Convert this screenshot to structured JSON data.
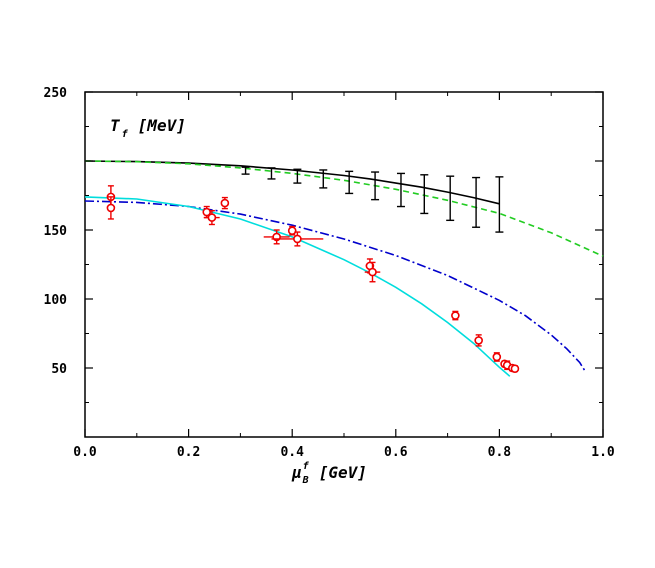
{
  "chart_data": {
    "type": "line",
    "title": "",
    "panel_label": {
      "symbol": "T",
      "subscript": "f",
      "unit": "[MeV]"
    },
    "xlabel": {
      "symbol": "μ",
      "superscript": "f",
      "subscript": "B",
      "unit": "[GeV]"
    },
    "xlim": [
      0.0,
      1.0
    ],
    "ylim": [
      0,
      250
    ],
    "x_ticks": [
      "0.0",
      "0.2",
      "0.4",
      "0.6",
      "0.8",
      "1.0"
    ],
    "x_tick_values": [
      0.0,
      0.2,
      0.4,
      0.6,
      0.8,
      1.0
    ],
    "y_ticks": [
      "50",
      "100",
      "150",
      "250"
    ],
    "y_tick_values": [
      50,
      100,
      150,
      250
    ],
    "grid": false,
    "legend": "none",
    "colors": {
      "lattice": "#000000",
      "green_dashed": "#22cc22",
      "blue_dashdot": "#0000cc",
      "cyan": "#00dddd",
      "data": "#ee0000"
    },
    "curves": [
      {
        "style": "solid",
        "color": "#000000",
        "x": [
          0.0,
          0.1,
          0.2,
          0.3,
          0.4,
          0.5,
          0.55,
          0.6,
          0.65,
          0.7,
          0.75,
          0.8
        ],
        "y": [
          200,
          199.6,
          198.5,
          196.5,
          193.5,
          189.5,
          187,
          184,
          181,
          177.5,
          173.5,
          169
        ]
      },
      {
        "style": "dashed",
        "color": "#22cc22",
        "x": [
          0.0,
          0.1,
          0.2,
          0.3,
          0.4,
          0.5,
          0.6,
          0.7,
          0.8,
          0.9,
          1.0
        ],
        "y": [
          200,
          199.5,
          198,
          195,
          191,
          186,
          179.5,
          171.5,
          162,
          148,
          131
        ]
      },
      {
        "style": "dashdot",
        "color": "#0000cc",
        "x": [
          0.0,
          0.1,
          0.2,
          0.3,
          0.4,
          0.5,
          0.6,
          0.7,
          0.8,
          0.85,
          0.9,
          0.93,
          0.955,
          0.965
        ],
        "y": [
          171,
          170,
          167,
          161.5,
          153.5,
          143.5,
          131.5,
          117,
          99,
          88,
          74,
          64,
          54,
          48
        ]
      },
      {
        "style": "solid",
        "color": "#00dddd",
        "x": [
          0.0,
          0.1,
          0.2,
          0.3,
          0.4,
          0.5,
          0.55,
          0.6,
          0.65,
          0.7,
          0.75,
          0.8,
          0.82
        ],
        "y": [
          174,
          172.5,
          167,
          158,
          145,
          128.5,
          119,
          108.5,
          96.5,
          83,
          68,
          50.5,
          44
        ]
      }
    ],
    "lattice_points": {
      "x": [
        0.31,
        0.36,
        0.41,
        0.46,
        0.51,
        0.56,
        0.61,
        0.655,
        0.705,
        0.755,
        0.8
      ],
      "y": [
        193,
        191,
        189,
        187,
        184.5,
        182,
        179,
        176,
        173,
        170,
        168.5
      ],
      "err": [
        2.5,
        4,
        5,
        6.5,
        8,
        10,
        12,
        14,
        16,
        18,
        20
      ]
    },
    "data_points": [
      {
        "x": 0.05,
        "y": 174,
        "yerr": 8,
        "xerr": 0
      },
      {
        "x": 0.05,
        "y": 166,
        "yerr": 8,
        "xerr": 0
      },
      {
        "x": 0.235,
        "y": 163,
        "yerr": 4,
        "xerr": 0.005
      },
      {
        "x": 0.245,
        "y": 159,
        "yerr": 5,
        "xerr": 0.015
      },
      {
        "x": 0.27,
        "y": 169.5,
        "yerr": 4,
        "xerr": 0
      },
      {
        "x": 0.37,
        "y": 145,
        "yerr": 5,
        "xerr": 0.025
      },
      {
        "x": 0.4,
        "y": 149.5,
        "yerr": 3,
        "xerr": 0.008
      },
      {
        "x": 0.41,
        "y": 143.5,
        "yerr": 5,
        "xerr": 0.05
      },
      {
        "x": 0.55,
        "y": 124,
        "yerr": 5,
        "xerr": 0.008
      },
      {
        "x": 0.555,
        "y": 119.5,
        "yerr": 7,
        "xerr": 0.015
      },
      {
        "x": 0.715,
        "y": 88,
        "yerr": 3,
        "xerr": 0.005
      },
      {
        "x": 0.76,
        "y": 70,
        "yerr": 4,
        "xerr": 0.005
      },
      {
        "x": 0.795,
        "y": 58,
        "yerr": 3,
        "xerr": 0.005
      },
      {
        "x": 0.81,
        "y": 53,
        "yerr": 2,
        "xerr": 0.005
      },
      {
        "x": 0.815,
        "y": 52,
        "yerr": 3,
        "xerr": 0.005
      },
      {
        "x": 0.825,
        "y": 50,
        "yerr": 2,
        "xerr": 0.005
      },
      {
        "x": 0.83,
        "y": 49.5,
        "yerr": 2,
        "xerr": 0.005
      }
    ]
  }
}
